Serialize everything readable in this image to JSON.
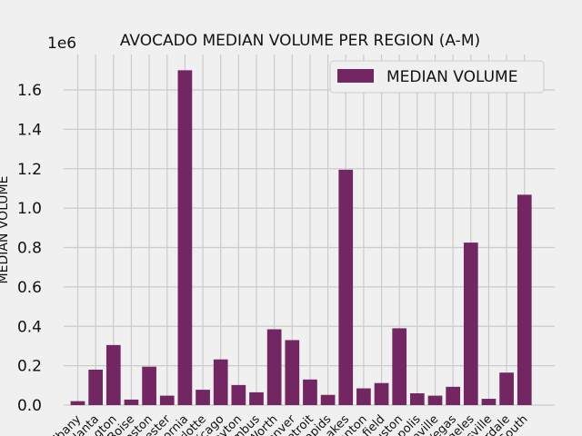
{
  "chart_data": {
    "type": "bar",
    "title": "AVOCADO MEDIAN VOLUME PER REGION (A-M)",
    "xlabel": "",
    "ylabel": "MEDIAN VOLUME",
    "ylim": [
      0,
      1780000
    ],
    "y_scale_label": "1e6",
    "y_ticks": [
      0,
      200000,
      400000,
      600000,
      800000,
      1000000,
      1200000,
      1400000,
      1600000
    ],
    "y_tick_labels": [
      "0.0",
      "0.2",
      "0.4",
      "0.6",
      "0.8",
      "1.0",
      "1.2",
      "1.4",
      "1.6"
    ],
    "grid": true,
    "legend_position": "top-right",
    "bar_color": "#722662",
    "categories": [
      "Albany",
      "Atlanta",
      "BaltimoreWashington",
      "Boise",
      "Boston",
      "BuffaloRochester",
      "California",
      "Charlotte",
      "Chicago",
      "CincinnatiDayton",
      "Columbus",
      "DallasFtWorth",
      "Denver",
      "Detroit",
      "GrandRapids",
      "GreatLakes",
      "HarrisburgScranton",
      "HartfordSpringfield",
      "Houston",
      "Indianapolis",
      "Jacksonville",
      "LasVegas",
      "LosAngeles",
      "Louisville",
      "MiamiFtLauderdale",
      "Midsouth"
    ],
    "tick_labels": [
      "lbany",
      "Atlanta",
      "gton",
      "Boise",
      "oston",
      "ester",
      "ornia",
      "arlotte",
      "icago",
      "ayton",
      "mbus",
      "Worth",
      "enver",
      "etroit",
      "apids",
      "akes",
      "anton",
      "field",
      "uston",
      "apolis",
      "nville",
      "/egas",
      "geles",
      "sville",
      "rdale",
      "South"
    ],
    "series": [
      {
        "name": "MEDIAN VOLUME",
        "values": [
          20000,
          180000,
          305000,
          28000,
          195000,
          48000,
          1700000,
          78000,
          232000,
          102000,
          65000,
          385000,
          330000,
          130000,
          52000,
          1195000,
          85000,
          112000,
          390000,
          60000,
          48000,
          93000,
          825000,
          32000,
          165000,
          1068000
        ]
      }
    ]
  }
}
